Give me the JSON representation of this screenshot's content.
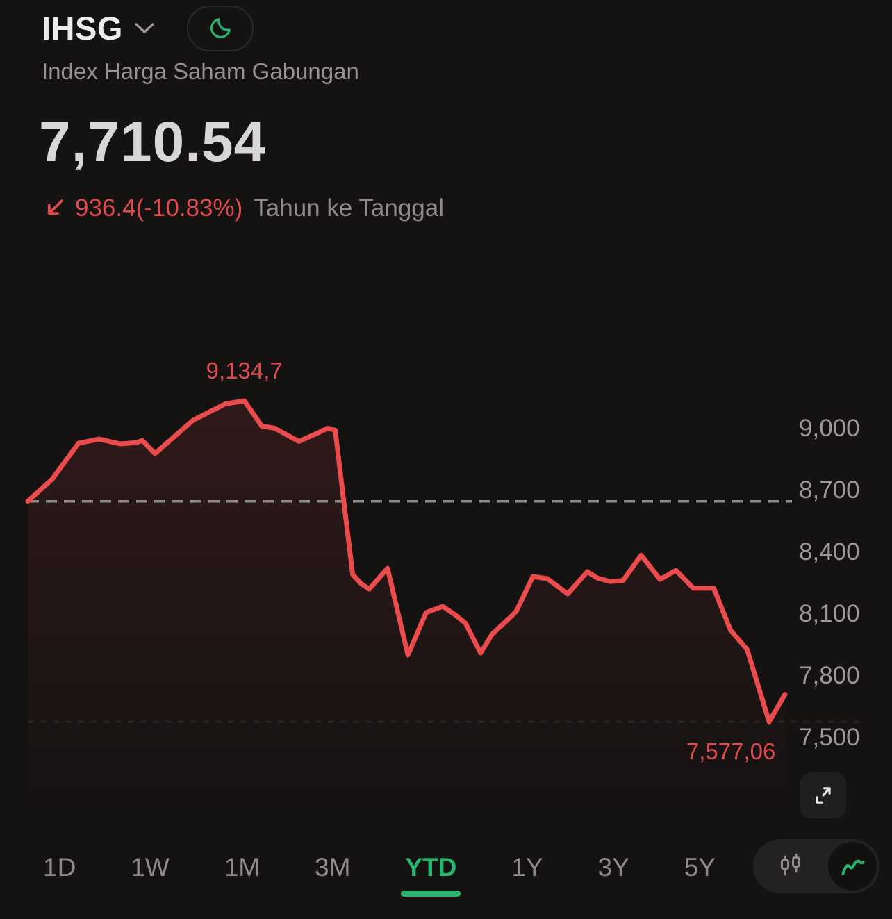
{
  "header": {
    "symbol": "IHSG",
    "subtitle": "Index Harga Saham Gabungan",
    "price": "7,710.54",
    "change_value": "936.4(-10.83%)",
    "change_period": "Tahun ke Tanggal"
  },
  "colors": {
    "accent_green": "#27b56e",
    "loss_red_text": "#e0494d",
    "line_red": "#ea4b4d",
    "tick_gray": "#9d9999",
    "dashed_gray": "#8c8c8c"
  },
  "icons": {
    "moon": "moon-icon",
    "chevron": "chevron-down-icon",
    "down_arrow": "trend-down-arrow-icon",
    "expand": "expand-icon",
    "candlestick": "candlestick-chart-icon",
    "line_chart": "line-chart-icon"
  },
  "chart_data": {
    "type": "line",
    "title": "IHSG Year-to-Date",
    "high": 9134.7,
    "high_label": "9,134,7",
    "low": 7577.06,
    "low_label": "7,577,06",
    "last": 7710.54,
    "prev_close": 8646.94,
    "ylim": [
      7400,
      9250
    ],
    "grid": "off",
    "legend": "none",
    "y_ticks": [
      {
        "label": "9,000",
        "value": 9000
      },
      {
        "label": "8,700",
        "value": 8700
      },
      {
        "label": "8,400",
        "value": 8400
      },
      {
        "label": "8,100",
        "value": 8100
      },
      {
        "label": "7,800",
        "value": 7800
      },
      {
        "label": "7,500",
        "value": 7500
      }
    ],
    "points": [
      [
        0.0,
        8646.94
      ],
      [
        0.032,
        8754
      ],
      [
        0.067,
        8929
      ],
      [
        0.094,
        8949
      ],
      [
        0.122,
        8926
      ],
      [
        0.144,
        8932
      ],
      [
        0.151,
        8943
      ],
      [
        0.168,
        8879
      ],
      [
        0.218,
        9040
      ],
      [
        0.261,
        9120
      ],
      [
        0.286,
        9134.7
      ],
      [
        0.309,
        9012
      ],
      [
        0.326,
        9002
      ],
      [
        0.358,
        8938
      ],
      [
        0.385,
        8982
      ],
      [
        0.396,
        9002
      ],
      [
        0.406,
        8992
      ],
      [
        0.429,
        8292
      ],
      [
        0.44,
        8248
      ],
      [
        0.451,
        8221
      ],
      [
        0.475,
        8322
      ],
      [
        0.502,
        7901
      ],
      [
        0.526,
        8107
      ],
      [
        0.548,
        8137
      ],
      [
        0.564,
        8097
      ],
      [
        0.578,
        8056
      ],
      [
        0.598,
        7911
      ],
      [
        0.613,
        8002
      ],
      [
        0.636,
        8080
      ],
      [
        0.645,
        8113
      ],
      [
        0.667,
        8282
      ],
      [
        0.686,
        8272
      ],
      [
        0.713,
        8198
      ],
      [
        0.739,
        8306
      ],
      [
        0.752,
        8275
      ],
      [
        0.769,
        8258
      ],
      [
        0.786,
        8262
      ],
      [
        0.81,
        8386
      ],
      [
        0.835,
        8268
      ],
      [
        0.856,
        8312
      ],
      [
        0.879,
        8225
      ],
      [
        0.906,
        8225
      ],
      [
        0.928,
        8022
      ],
      [
        0.95,
        7928
      ],
      [
        0.979,
        7577.06
      ],
      [
        1.0,
        7710.54
      ]
    ]
  },
  "ranges": {
    "tabs": [
      {
        "label": "1D",
        "active": false
      },
      {
        "label": "1W",
        "active": false
      },
      {
        "label": "1M",
        "active": false
      },
      {
        "label": "3M",
        "active": false
      },
      {
        "label": "YTD",
        "active": true
      },
      {
        "label": "1Y",
        "active": false
      },
      {
        "label": "3Y",
        "active": false
      },
      {
        "label": "5Y",
        "active": false
      }
    ]
  }
}
